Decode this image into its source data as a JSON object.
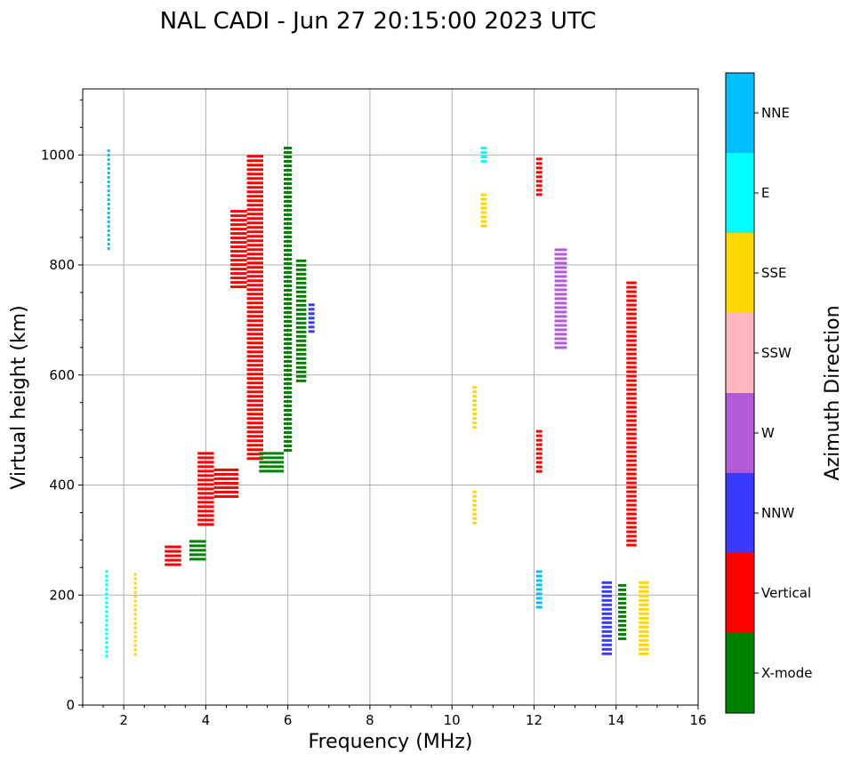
{
  "chart_data": {
    "type": "scatter",
    "title": "NAL CADI - Jun 27 20:15:00 2023 UTC",
    "xlabel": "Frequency (MHz)",
    "ylabel": "Virtual height (km)",
    "xlim": [
      1,
      16
    ],
    "ylim": [
      0,
      1120
    ],
    "xticks": [
      "2",
      "4",
      "6",
      "8",
      "10",
      "12",
      "14",
      "16"
    ],
    "yticks": [
      "0",
      "200",
      "400",
      "600",
      "800",
      "1000"
    ],
    "grid": true,
    "colorbar": {
      "label": "Azimuth Direction",
      "categories": [
        {
          "name": "X-mode",
          "color": "#008000"
        },
        {
          "name": "Vertical",
          "color": "#ff0000"
        },
        {
          "name": "NNW",
          "color": "#3a3aff"
        },
        {
          "name": "W",
          "color": "#b35ad6"
        },
        {
          "name": "SSW",
          "color": "#ffb6c1"
        },
        {
          "name": "SSE",
          "color": "#ffd700"
        },
        {
          "name": "E",
          "color": "#00ffff"
        },
        {
          "name": "NNE",
          "color": "#00bfff"
        }
      ]
    },
    "segments": [
      {
        "f0": 1.55,
        "f1": 1.6,
        "h0": 90,
        "h1": 245,
        "dir": "E"
      },
      {
        "f0": 1.6,
        "f1": 1.65,
        "h0": 825,
        "h1": 1010,
        "dir": "NNE"
      },
      {
        "f0": 2.25,
        "f1": 2.32,
        "h0": 90,
        "h1": 240,
        "dir": "SSE"
      },
      {
        "f0": 3.0,
        "f1": 3.4,
        "h0": 250,
        "h1": 290,
        "dir": "Vertical"
      },
      {
        "f0": 3.6,
        "f1": 4.0,
        "h0": 265,
        "h1": 300,
        "dir": "X-mode"
      },
      {
        "f0": 3.8,
        "f1": 4.2,
        "h0": 330,
        "h1": 460,
        "dir": "Vertical"
      },
      {
        "f0": 4.2,
        "f1": 4.8,
        "h0": 380,
        "h1": 430,
        "dir": "Vertical"
      },
      {
        "f0": 4.6,
        "f1": 5.0,
        "h0": 760,
        "h1": 900,
        "dir": "Vertical"
      },
      {
        "f0": 5.0,
        "f1": 5.4,
        "h0": 450,
        "h1": 1000,
        "dir": "Vertical"
      },
      {
        "f0": 5.3,
        "f1": 5.9,
        "h0": 420,
        "h1": 460,
        "dir": "X-mode"
      },
      {
        "f0": 5.9,
        "f1": 6.1,
        "h0": 460,
        "h1": 1015,
        "dir": "X-mode"
      },
      {
        "f0": 6.2,
        "f1": 6.45,
        "h0": 590,
        "h1": 810,
        "dir": "X-mode"
      },
      {
        "f0": 6.5,
        "f1": 6.65,
        "h0": 675,
        "h1": 730,
        "dir": "NNW"
      },
      {
        "f0": 10.7,
        "f1": 10.85,
        "h0": 870,
        "h1": 930,
        "dir": "SSE"
      },
      {
        "f0": 10.7,
        "f1": 10.85,
        "h0": 985,
        "h1": 1015,
        "dir": "E"
      },
      {
        "f0": 10.5,
        "f1": 10.6,
        "h0": 330,
        "h1": 390,
        "dir": "SSE"
      },
      {
        "f0": 10.5,
        "f1": 10.6,
        "h0": 500,
        "h1": 580,
        "dir": "SSE"
      },
      {
        "f0": 12.05,
        "f1": 12.2,
        "h0": 925,
        "h1": 995,
        "dir": "Vertical"
      },
      {
        "f0": 12.05,
        "f1": 12.2,
        "h0": 175,
        "h1": 245,
        "dir": "NNE"
      },
      {
        "f0": 12.05,
        "f1": 12.2,
        "h0": 425,
        "h1": 500,
        "dir": "Vertical"
      },
      {
        "f0": 12.5,
        "f1": 12.8,
        "h0": 650,
        "h1": 830,
        "dir": "W"
      },
      {
        "f0": 14.25,
        "f1": 14.5,
        "h0": 290,
        "h1": 770,
        "dir": "Vertical"
      },
      {
        "f0": 14.55,
        "f1": 14.8,
        "h0": 90,
        "h1": 225,
        "dir": "SSE"
      },
      {
        "f0": 13.65,
        "f1": 13.9,
        "h0": 90,
        "h1": 225,
        "dir": "NNW"
      },
      {
        "f0": 14.05,
        "f1": 14.25,
        "h0": 120,
        "h1": 220,
        "dir": "X-mode"
      }
    ]
  }
}
